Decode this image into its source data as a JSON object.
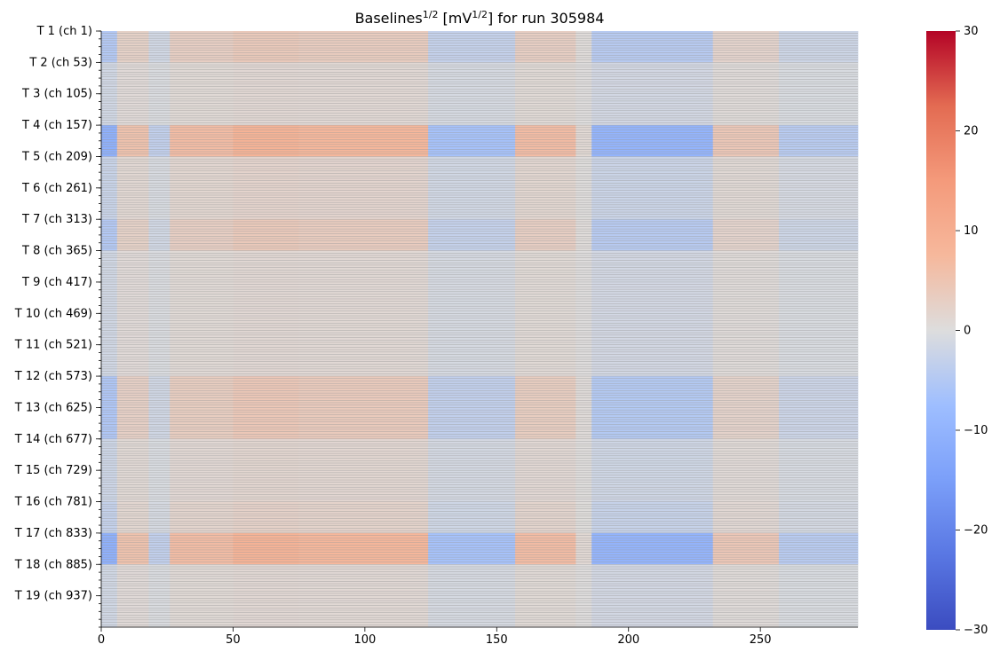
{
  "chart_data": {
    "type": "heatmap",
    "title": "Baselines^{1/2} [mV^{1/2}] for run 305984",
    "title_parts": {
      "pre": "Baselines",
      "sup1": "1/2",
      "mid": " [mV",
      "sup2": "1/2",
      "post": "] for run 305984"
    },
    "x_range": [
      0,
      287
    ],
    "x_ticks": [
      0,
      50,
      100,
      150,
      200,
      250
    ],
    "y_tick_labels": [
      "T 1 (ch 1)",
      "T 2 (ch 53)",
      "T 3 (ch 105)",
      "T 4 (ch 157)",
      "T 5 (ch 209)",
      "T 6 (ch 261)",
      "T 7 (ch 313)",
      "T 8 (ch 365)",
      "T 9 (ch 417)",
      "T 10 (ch 469)",
      "T 11 (ch 521)",
      "T 12 (ch 573)",
      "T 13 (ch 625)",
      "T 14 (ch 677)",
      "T 15 (ch 729)",
      "T 16 (ch 781)",
      "T 17 (ch 833)",
      "T 18 (ch 885)",
      "T 19 (ch 937)"
    ],
    "channels_per_tower": 52,
    "colormap": "coolwarm",
    "color_range": [
      -30,
      30
    ],
    "colorbar_ticks": [
      30,
      20,
      10,
      0,
      -10,
      -20,
      -30
    ],
    "column_blocks": [
      {
        "x0": 0,
        "x1": 6,
        "value": -10
      },
      {
        "x0": 6,
        "x1": 18,
        "value": 5
      },
      {
        "x0": 18,
        "x1": 26,
        "value": -3
      },
      {
        "x0": 26,
        "x1": 50,
        "value": 6
      },
      {
        "x0": 50,
        "x1": 75,
        "value": 8
      },
      {
        "x0": 75,
        "x1": 124,
        "value": 7
      },
      {
        "x0": 124,
        "x1": 157,
        "value": -6
      },
      {
        "x0": 157,
        "x1": 180,
        "value": 6
      },
      {
        "x0": 180,
        "x1": 186,
        "value": 1
      },
      {
        "x0": 186,
        "x1": 232,
        "value": -9
      },
      {
        "x0": 232,
        "x1": 257,
        "value": 4
      },
      {
        "x0": 257,
        "x1": 287,
        "value": -4
      }
    ],
    "row_bands": [
      {
        "y0": 0,
        "y1": 52,
        "factor": 0.5
      },
      {
        "y0": 52,
        "y1": 156,
        "factor": 0.15
      },
      {
        "y0": 156,
        "y1": 208,
        "factor": 1.1
      },
      {
        "y0": 208,
        "y1": 312,
        "factor": 0.25
      },
      {
        "y0": 312,
        "y1": 364,
        "factor": 0.5
      },
      {
        "y0": 364,
        "y1": 572,
        "factor": 0.15
      },
      {
        "y0": 572,
        "y1": 676,
        "factor": 0.55
      },
      {
        "y0": 676,
        "y1": 780,
        "factor": 0.2
      },
      {
        "y0": 780,
        "y1": 832,
        "factor": 0.3
      },
      {
        "y0": 832,
        "y1": 884,
        "factor": 1.1
      },
      {
        "y0": 884,
        "y1": 988,
        "factor": 0.15
      }
    ],
    "grid": true
  }
}
